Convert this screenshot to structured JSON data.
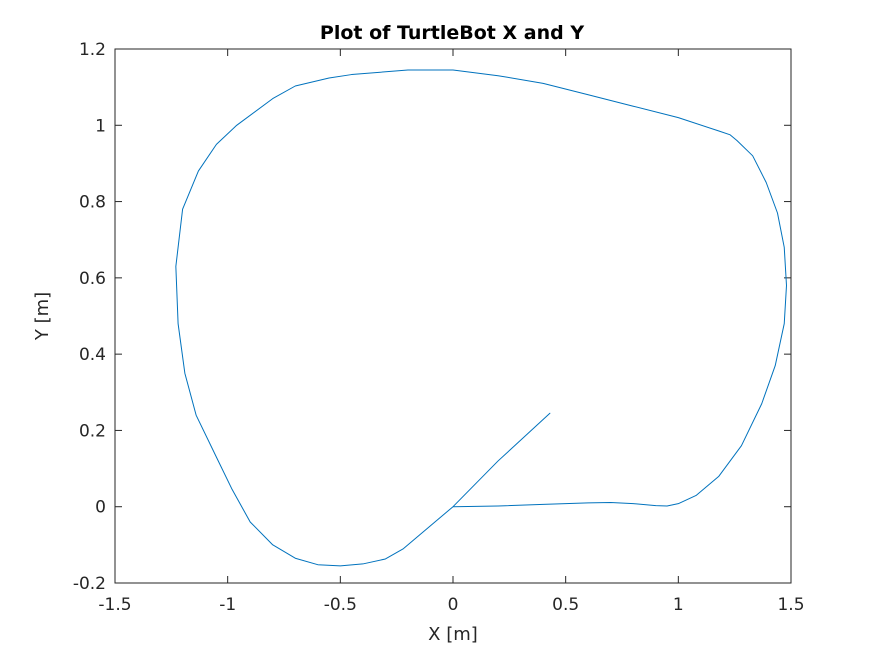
{
  "chart_data": {
    "type": "line",
    "title": "Plot of TurtleBot X and Y",
    "xlabel": "X [m]",
    "ylabel": "Y [m]",
    "xlim": [
      -1.5,
      1.5
    ],
    "ylim": [
      -0.2,
      1.2
    ],
    "xticks": [
      -1.5,
      -1,
      -0.5,
      0,
      0.5,
      1,
      1.5
    ],
    "yticks": [
      -0.2,
      0,
      0.2,
      0.4,
      0.6,
      0.8,
      1,
      1.2
    ],
    "xtick_labels": [
      "-1.5",
      "-1",
      "-0.5",
      "0",
      "0.5",
      "1",
      "1.5"
    ],
    "ytick_labels": [
      "-0.2",
      "0",
      "0.2",
      "0.4",
      "0.6",
      "0.8",
      "1",
      "1.2"
    ],
    "grid": false,
    "legend": "none",
    "series": [
      {
        "color": "#0072BD",
        "x": [
          0,
          0.2,
          0.4,
          0.6,
          0.7,
          0.8,
          0.9,
          0.95,
          1.0,
          1.08,
          1.18,
          1.28,
          1.37,
          1.43,
          1.47,
          1.48,
          1.47,
          1.44,
          1.39,
          1.33,
          1.26,
          1.23,
          1.18,
          1.0,
          0.8,
          0.6,
          0.4,
          0.2,
          0.0,
          -0.2,
          -0.45,
          -0.55,
          -0.7,
          -0.8,
          -0.96,
          -1.05,
          -1.13,
          -1.2,
          -1.23,
          -1.22,
          -1.19,
          -1.14,
          -1.05,
          -0.98,
          -0.9,
          -0.8,
          -0.7,
          -0.6,
          -0.5,
          -0.4,
          -0.3,
          -0.22,
          -0.1,
          0.0,
          0.2,
          0.43
        ],
        "y": [
          0,
          0.002,
          0.006,
          0.01,
          0.011,
          0.008,
          0.003,
          0.002,
          0.008,
          0.03,
          0.08,
          0.16,
          0.27,
          0.37,
          0.48,
          0.58,
          0.68,
          0.77,
          0.85,
          0.92,
          0.96,
          0.975,
          0.985,
          1.02,
          1.05,
          1.08,
          1.11,
          1.13,
          1.145,
          1.145,
          1.133,
          1.124,
          1.103,
          1.07,
          1.0,
          0.95,
          0.88,
          0.78,
          0.63,
          0.48,
          0.35,
          0.24,
          0.13,
          0.045,
          -0.04,
          -0.1,
          -0.135,
          -0.152,
          -0.155,
          -0.15,
          -0.137,
          -0.11,
          -0.05,
          0,
          0.12,
          0.245
        ]
      }
    ]
  }
}
